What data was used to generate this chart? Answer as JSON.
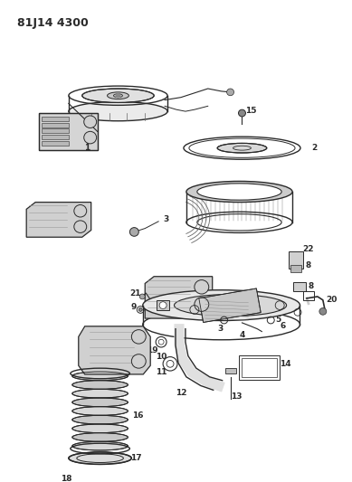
{
  "title": "81J14 4300",
  "background_color": "#ffffff",
  "line_color": "#2a2a2a",
  "label_fontsize": 6.5,
  "figsize": [
    3.89,
    5.33
  ],
  "dpi": 100
}
